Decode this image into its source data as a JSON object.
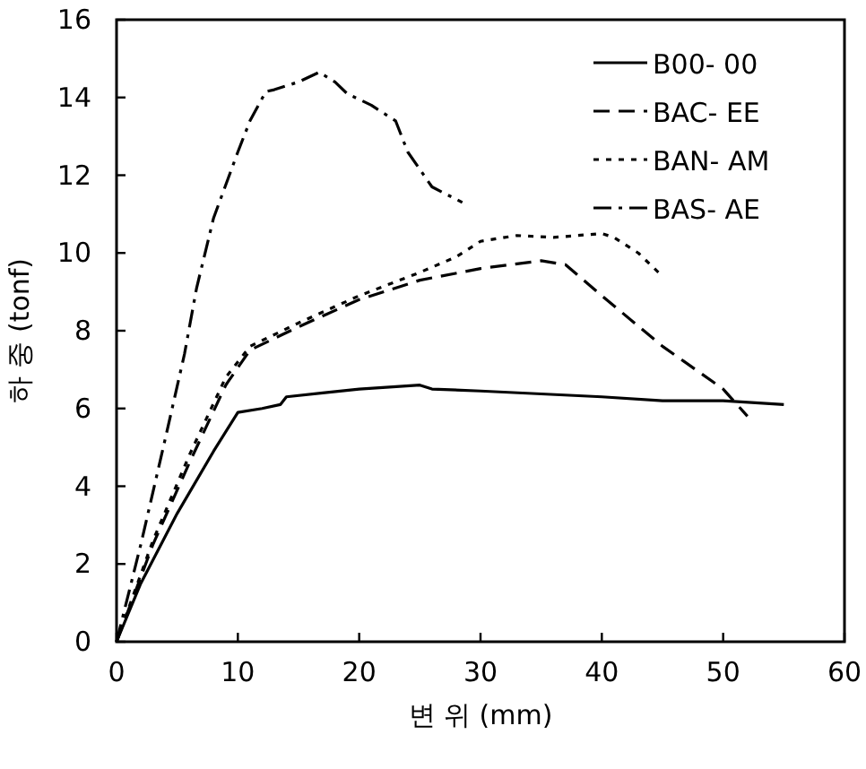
{
  "chart_data": {
    "type": "line",
    "xlabel": "변 위 (mm)",
    "ylabel": "하 중 (tonf)",
    "xlim": [
      0,
      60
    ],
    "xticks": [
      0,
      10,
      20,
      30,
      40,
      50,
      60
    ],
    "ylim": [
      0,
      16
    ],
    "yticks": [
      0,
      2,
      4,
      6,
      8,
      10,
      12,
      14,
      16
    ],
    "grid": false,
    "legend": "top right",
    "marker": "none",
    "series": [
      {
        "name": "B00- 00",
        "color": "#000000",
        "line_style": "solid",
        "x": [
          0,
          2,
          5,
          8,
          10,
          12,
          13.5,
          14,
          17,
          20,
          25,
          26,
          30,
          40,
          45,
          50,
          55
        ],
        "values": [
          0,
          1.5,
          3.3,
          4.9,
          5.9,
          6.0,
          6.1,
          6.3,
          6.4,
          6.5,
          6.6,
          6.5,
          6.45,
          6.3,
          6.2,
          6.2,
          6.1
        ]
      },
      {
        "name": "BAC- EE",
        "color": "#000000",
        "line_style": "dashed",
        "x": [
          0,
          3,
          6,
          9,
          11,
          15,
          20,
          25,
          30,
          35,
          37,
          40,
          45,
          50,
          52
        ],
        "values": [
          0,
          2.5,
          4.6,
          6.6,
          7.5,
          8.1,
          8.8,
          9.3,
          9.6,
          9.8,
          9.7,
          8.9,
          7.6,
          6.5,
          5.8
        ]
      },
      {
        "name": "BAN- AM",
        "color": "#000000",
        "line_style": "dotted",
        "x": [
          0,
          3,
          6,
          9,
          11,
          15,
          20,
          25,
          28,
          30,
          33,
          36,
          40,
          41,
          43,
          45
        ],
        "values": [
          0,
          2.6,
          4.8,
          6.8,
          7.6,
          8.2,
          8.9,
          9.5,
          9.9,
          10.3,
          10.45,
          10.4,
          10.5,
          10.4,
          10.0,
          9.4
        ]
      },
      {
        "name": "BAS- AE",
        "color": "#000000",
        "line_style": "dashdot",
        "x": [
          0,
          2,
          4,
          5.6,
          6.6,
          8,
          10,
          11,
          12.3,
          13,
          15,
          16.7,
          18,
          19,
          21,
          23,
          24,
          26,
          28.5
        ],
        "values": [
          0,
          2.5,
          5.2,
          7.4,
          9.1,
          10.9,
          12.6,
          13.4,
          14.15,
          14.2,
          14.4,
          14.65,
          14.4,
          14.1,
          13.8,
          13.4,
          12.6,
          11.7,
          11.3
        ]
      }
    ]
  }
}
